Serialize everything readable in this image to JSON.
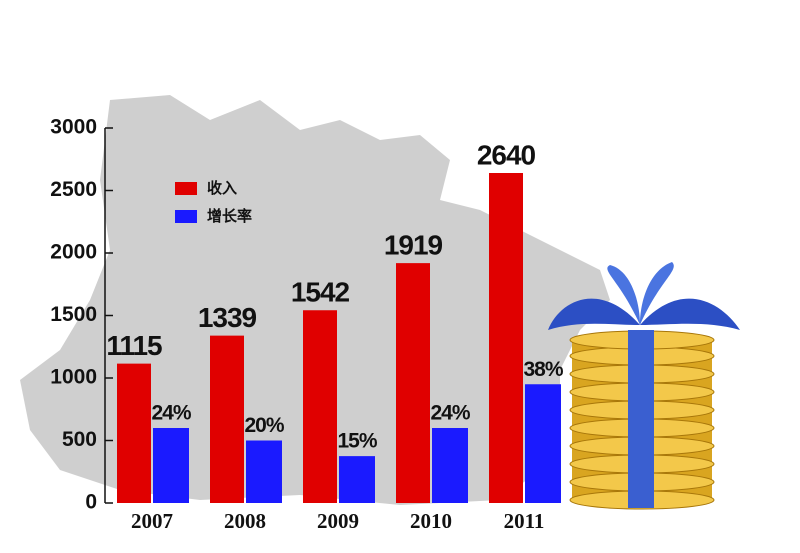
{
  "chart_data": {
    "type": "bar",
    "categories": [
      "2007",
      "2008",
      "2009",
      "2010",
      "2011"
    ],
    "series": [
      {
        "name": "收入",
        "color": "#e00000",
        "values": [
          1115,
          1339,
          1542,
          1919,
          2640
        ]
      },
      {
        "name": "增长率",
        "color": "#1a1aff",
        "axis": "y2",
        "values": [
          24,
          20,
          15,
          24,
          38
        ],
        "value_labels": [
          "24%",
          "20%",
          "15%",
          "24%",
          "38%"
        ]
      }
    ],
    "ylim": [
      0,
      3000
    ],
    "yticks": [
      0,
      500,
      1000,
      1500,
      2000,
      2500,
      3000
    ],
    "y2lim": [
      0,
      120
    ]
  }
}
